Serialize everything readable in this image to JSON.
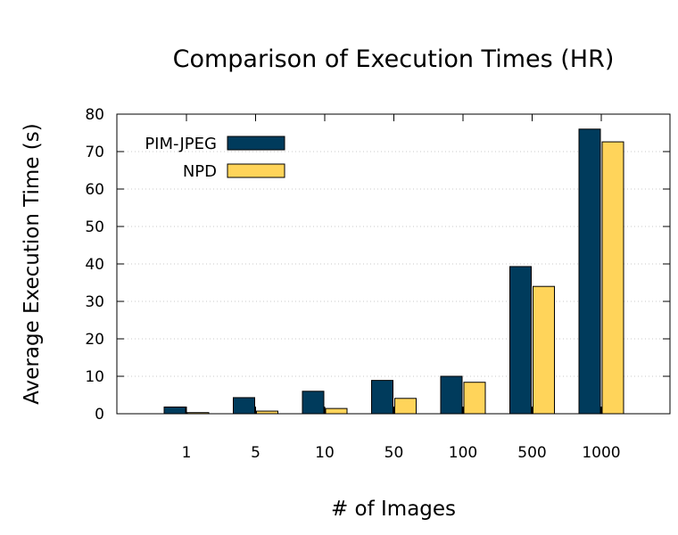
{
  "chart_data": {
    "type": "bar",
    "title": "Comparison of Execution Times (HR)",
    "xlabel": "# of Images",
    "ylabel": "Average Execution Time (s)",
    "categories": [
      "1",
      "5",
      "10",
      "50",
      "100",
      "500",
      "1000"
    ],
    "series": [
      {
        "name": "PIM-JPEG",
        "color": "#003b5c",
        "values": [
          1.8,
          4.3,
          6.0,
          8.9,
          10.0,
          39.3,
          76.0
        ]
      },
      {
        "name": "NPD",
        "color": "#ffd45a",
        "values": [
          0.3,
          0.7,
          1.4,
          4.1,
          8.4,
          34.0,
          72.6
        ]
      }
    ],
    "ylim": [
      0,
      80
    ],
    "yticks": [
      0,
      10,
      20,
      30,
      40,
      50,
      60,
      70,
      80
    ],
    "grid": "horizontal dotted",
    "legend_position": "top-left"
  }
}
